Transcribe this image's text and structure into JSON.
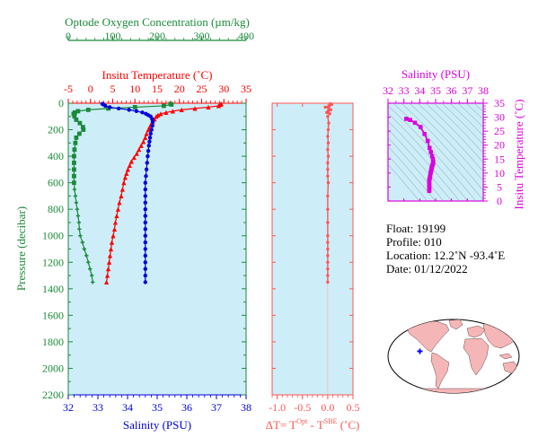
{
  "colors": {
    "oxygen": "#1a8a3a",
    "temperature": "#ff0000",
    "salinity": "#0000dd",
    "deltaT": "#ff5555",
    "ts": "#dd00dd",
    "panel_bg": "#cdeef8",
    "land": "#f4b6b6",
    "ocean": "#ffffff"
  },
  "chart_data": [
    {
      "type": "line",
      "name": "profile",
      "ylabel": "Pressure (decibar)",
      "y_ticks": [
        "0",
        "200",
        "400",
        "600",
        "800",
        "1000",
        "1200",
        "1400",
        "1600",
        "1800",
        "2000",
        "2200"
      ],
      "ylim": [
        0,
        2200
      ],
      "y_inverted": true,
      "axes": {
        "oxygen": {
          "label": "Optode Oxygen Concentration (µm/kg)",
          "ticks": [
            "0",
            "100",
            "200",
            "300",
            "400"
          ],
          "range": [
            0,
            400
          ]
        },
        "temperature": {
          "label": "Insitu Temperature (˚C)",
          "ticks": [
            "-5",
            "0",
            "5",
            "10",
            "15",
            "20",
            "25",
            "30",
            "35"
          ],
          "range": [
            -5,
            35
          ]
        },
        "salinity": {
          "label": "Salinity (PSU)",
          "ticks": [
            "32",
            "33",
            "34",
            "35",
            "36",
            "37",
            "38"
          ],
          "range": [
            32,
            38
          ]
        }
      },
      "series": [
        {
          "name": "Oxygen",
          "color": "#1a8a3a",
          "axis": "oxygen",
          "points": [
            [
              230,
              5
            ],
            [
              232,
              10
            ],
            [
              215,
              20
            ],
            [
              150,
              30
            ],
            [
              90,
              40
            ],
            [
              45,
              50
            ],
            [
              22,
              60
            ],
            [
              15,
              70
            ],
            [
              12,
              80
            ],
            [
              14,
              100
            ],
            [
              18,
              125
            ],
            [
              26,
              150
            ],
            [
              33,
              180
            ],
            [
              34,
              200
            ],
            [
              25,
              230
            ],
            [
              18,
              260
            ],
            [
              16,
              300
            ],
            [
              14,
              350
            ],
            [
              13,
              400
            ],
            [
              13,
              450
            ],
            [
              13,
              500
            ],
            [
              13,
              550
            ],
            [
              13,
              600
            ],
            [
              14,
              650
            ],
            [
              16,
              700
            ],
            [
              18,
              750
            ],
            [
              20,
              800
            ],
            [
              22,
              850
            ],
            [
              24,
              900
            ],
            [
              25,
              950
            ],
            [
              27,
              1000
            ],
            [
              32,
              1050
            ],
            [
              36,
              1100
            ],
            [
              41,
              1150
            ],
            [
              45,
              1200
            ],
            [
              49,
              1250
            ],
            [
              53,
              1300
            ],
            [
              55,
              1350
            ]
          ]
        },
        {
          "name": "Temperature",
          "color": "#ff0000",
          "axis": "temperature",
          "points": [
            [
              29.4,
              5
            ],
            [
              29.2,
              10
            ],
            [
              28.8,
              20
            ],
            [
              26.5,
              30
            ],
            [
              23.5,
              40
            ],
            [
              20.5,
              50
            ],
            [
              18.5,
              60
            ],
            [
              17.0,
              70
            ],
            [
              15.8,
              80
            ],
            [
              15.2,
              90
            ],
            [
              14.8,
              100
            ],
            [
              14.4,
              120
            ],
            [
              14.0,
              140
            ],
            [
              13.6,
              160
            ],
            [
              13.3,
              180
            ],
            [
              13.0,
              200
            ],
            [
              12.6,
              230
            ],
            [
              12.3,
              260
            ],
            [
              11.9,
              290
            ],
            [
              11.4,
              320
            ],
            [
              10.9,
              350
            ],
            [
              10.4,
              380
            ],
            [
              9.8,
              410
            ],
            [
              9.2,
              440
            ],
            [
              8.8,
              470
            ],
            [
              8.4,
              500
            ],
            [
              8.1,
              530
            ],
            [
              7.8,
              560
            ],
            [
              7.5,
              600
            ],
            [
              7.2,
              650
            ],
            [
              6.9,
              700
            ],
            [
              6.5,
              750
            ],
            [
              6.2,
              800
            ],
            [
              5.9,
              850
            ],
            [
              5.6,
              900
            ],
            [
              5.4,
              950
            ],
            [
              5.1,
              1000
            ],
            [
              4.8,
              1050
            ],
            [
              4.6,
              1100
            ],
            [
              4.4,
              1150
            ],
            [
              4.2,
              1200
            ],
            [
              4.0,
              1250
            ],
            [
              3.8,
              1300
            ],
            [
              3.6,
              1350
            ]
          ]
        },
        {
          "name": "Salinity",
          "color": "#0000dd",
          "axis": "salinity",
          "points": [
            [
              33.15,
              5
            ],
            [
              33.18,
              10
            ],
            [
              33.25,
              20
            ],
            [
              33.4,
              30
            ],
            [
              33.7,
              40
            ],
            [
              34.05,
              50
            ],
            [
              34.3,
              60
            ],
            [
              34.5,
              70
            ],
            [
              34.62,
              80
            ],
            [
              34.7,
              90
            ],
            [
              34.78,
              100
            ],
            [
              34.83,
              120
            ],
            [
              34.85,
              140
            ],
            [
              34.84,
              170
            ],
            [
              34.81,
              200
            ],
            [
              34.78,
              230
            ],
            [
              34.76,
              260
            ],
            [
              34.74,
              290
            ],
            [
              34.72,
              320
            ],
            [
              34.7,
              360
            ],
            [
              34.68,
              400
            ],
            [
              34.66,
              450
            ],
            [
              34.64,
              500
            ],
            [
              34.62,
              550
            ],
            [
              34.6,
              600
            ],
            [
              34.6,
              650
            ],
            [
              34.6,
              700
            ],
            [
              34.6,
              750
            ],
            [
              34.6,
              800
            ],
            [
              34.6,
              850
            ],
            [
              34.6,
              900
            ],
            [
              34.6,
              950
            ],
            [
              34.6,
              1000
            ],
            [
              34.6,
              1050
            ],
            [
              34.6,
              1100
            ],
            [
              34.6,
              1150
            ],
            [
              34.6,
              1200
            ],
            [
              34.6,
              1250
            ],
            [
              34.6,
              1300
            ],
            [
              34.6,
              1350
            ]
          ]
        }
      ]
    },
    {
      "type": "line",
      "name": "delta_t",
      "xlabel_prefix": "ΔT= T",
      "xlabel_sup1": "Opt",
      "xlabel_mid": " - T",
      "xlabel_sup2": "SBE",
      "xlabel_suffix": " (˚C)",
      "x_ticks": [
        "-1.0",
        "-0.5",
        "0.0",
        "0.5"
      ],
      "xlim": [
        -1.1,
        0.5
      ],
      "ylim": [
        0,
        2200
      ],
      "series": [
        {
          "name": "ΔT",
          "color": "#ff5555",
          "points": [
            [
              0.05,
              5
            ],
            [
              0.08,
              10
            ],
            [
              0.03,
              20
            ],
            [
              -0.05,
              30
            ],
            [
              0.02,
              40
            ],
            [
              0.06,
              50
            ],
            [
              0.01,
              60
            ],
            [
              -0.02,
              70
            ],
            [
              0.04,
              80
            ],
            [
              0.0,
              100
            ],
            [
              0.02,
              150
            ],
            [
              0.01,
              200
            ],
            [
              0.0,
              250
            ],
            [
              0.01,
              300
            ],
            [
              0.0,
              350
            ],
            [
              0.01,
              400
            ],
            [
              0.0,
              450
            ],
            [
              0.0,
              500
            ],
            [
              0.0,
              550
            ],
            [
              0.01,
              600
            ],
            [
              0.0,
              700
            ],
            [
              0.0,
              800
            ],
            [
              0.0,
              900
            ],
            [
              0.0,
              1000
            ],
            [
              0.0,
              1050
            ],
            [
              0.0,
              1100
            ],
            [
              0.0,
              1150
            ],
            [
              0.0,
              1200
            ],
            [
              0.0,
              1250
            ],
            [
              0.0,
              1300
            ],
            [
              0.0,
              1350
            ]
          ]
        }
      ]
    },
    {
      "type": "scatter",
      "name": "ts_diagram",
      "xlabel": "Salinity (PSU)",
      "ylabel": "Insitu Temperature (˚C)",
      "x_ticks": [
        "32",
        "33",
        "34",
        "35",
        "36",
        "37",
        "38"
      ],
      "y_ticks": [
        "0",
        "5",
        "10",
        "15",
        "20",
        "25",
        "30",
        "35"
      ],
      "xlim": [
        32,
        38
      ],
      "ylim": [
        0,
        35
      ],
      "series": [
        {
          "name": "T-S",
          "color": "#dd00dd",
          "points": [
            [
              33.15,
              29.4
            ],
            [
              33.4,
              29.0
            ],
            [
              33.7,
              28.0
            ],
            [
              34.05,
              26.5
            ],
            [
              34.3,
              24.0
            ],
            [
              34.5,
              21.5
            ],
            [
              34.62,
              19.0
            ],
            [
              34.7,
              17.5
            ],
            [
              34.78,
              16.0
            ],
            [
              34.83,
              15.0
            ],
            [
              34.85,
              14.0
            ],
            [
              34.84,
              13.5
            ],
            [
              34.81,
              13.0
            ],
            [
              34.78,
              12.5
            ],
            [
              34.76,
              12.0
            ],
            [
              34.74,
              11.5
            ],
            [
              34.72,
              11.0
            ],
            [
              34.7,
              10.5
            ],
            [
              34.68,
              10.0
            ],
            [
              34.66,
              9.0
            ],
            [
              34.64,
              8.5
            ],
            [
              34.62,
              8.0
            ],
            [
              34.6,
              7.5
            ],
            [
              34.6,
              7.0
            ],
            [
              34.6,
              6.5
            ],
            [
              34.6,
              6.0
            ],
            [
              34.6,
              5.5
            ],
            [
              34.6,
              5.0
            ],
            [
              34.6,
              4.5
            ],
            [
              34.6,
              4.0
            ],
            [
              34.6,
              3.6
            ]
          ]
        }
      ]
    }
  ],
  "info": {
    "float": "Float:  19199",
    "profile": "Profile:  010",
    "location": "Location:  12.2˚N  -93.4˚E",
    "date": "Date:  01/12/2022"
  },
  "map": {
    "float_marker_color": "#0000ff",
    "float_lon": -93.4,
    "float_lat": 12.2
  }
}
